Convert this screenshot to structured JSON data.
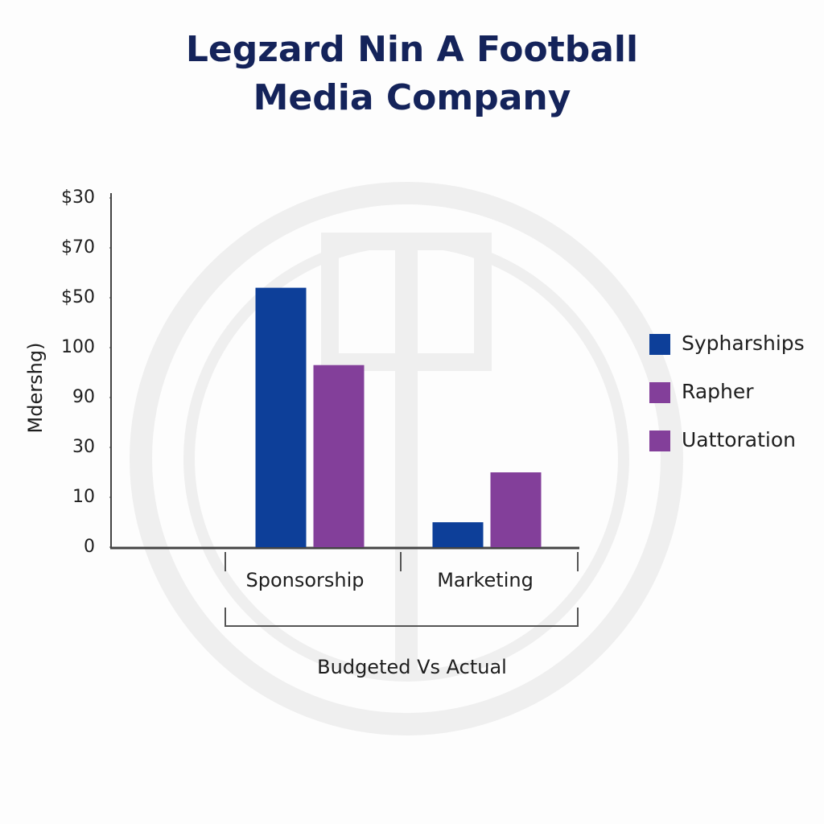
{
  "chart_data": {
    "type": "bar",
    "title": "Legzard Nin A Football Media Company",
    "y_label": "Mdershg)",
    "x_label": "Budgeted Vs Actual",
    "categories": [
      "Sponsorship",
      "Marketing"
    ],
    "series": [
      {
        "name": "Sypharships",
        "color": "#0d3f99",
        "values": [
          52,
          5
        ]
      },
      {
        "name": "Rapher",
        "color": "#833f9a",
        "values": [
          36.5,
          15
        ]
      },
      {
        "name": "Uattoration",
        "color": "#833f9a",
        "values": [
          null,
          null
        ]
      }
    ],
    "ylim": [
      0,
      70
    ],
    "yticks": [
      0,
      10,
      {
        "value": 20,
        "label": "30"
      },
      {
        "value": 30,
        "label": "90"
      },
      {
        "value": 40,
        "label": "100"
      },
      {
        "value": 50,
        "label": "$50"
      },
      {
        "value": 60,
        "label": "$70"
      },
      {
        "value": 70,
        "label": "$30"
      }
    ],
    "grid": false,
    "legend": "right"
  }
}
